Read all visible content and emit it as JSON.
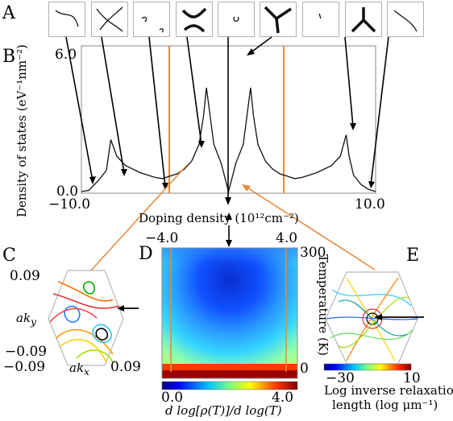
{
  "panel_labels": {
    "a": "A",
    "b": "B",
    "c": "C",
    "d": "D",
    "e": "E"
  },
  "thumbnails": [
    "fermi-contour-1",
    "fermi-contour-2",
    "fermi-contour-3",
    "fermi-contour-4",
    "fermi-contour-5",
    "fermi-contour-6",
    "fermi-contour-7",
    "fermi-contour-8",
    "fermi-contour-9"
  ],
  "panel_b": {
    "ylabel": "Density of states (eV⁻¹nm⁻²)",
    "xlabel": "Doping density (10¹²cm⁻²)",
    "y_top_tick": "6.0",
    "y_bottom_tick": "0.0",
    "x_left_tick": "−10.0",
    "x_right_tick": "10.0"
  },
  "panel_c": {
    "y_top_tick": "0.09",
    "y_bottom_tick": "−0.09",
    "x_left_tick": "−0.09",
    "x_right_tick": "0.09",
    "ylabel": "ak",
    "ylabel_sub": "y",
    "xlabel": "ak",
    "xlabel_sub": "x"
  },
  "panel_d": {
    "x_left_tick": "−4.0",
    "x_right_tick": "4.0",
    "y_top_tick": "300",
    "y_bottom_tick": "0",
    "ylabel": "Temperature (K)",
    "cbar_left": "0.0",
    "cbar_right": "4.0",
    "cbar_label": "d log[ρ(T)]/d log(T)"
  },
  "panel_e": {
    "cbar_left": "−30",
    "cbar_right": "10",
    "cbar_label_line1": "Log inverse relaxation",
    "cbar_label_line2": "length (log μm⁻¹)"
  },
  "colors": {
    "orange": "#e8893a",
    "curve": "#111111"
  },
  "chart_data": {
    "type": "line",
    "xlabel": "Doping density (10^12 cm^-2)",
    "ylabel": "Density of states (eV^-1 nm^-2)",
    "xlim": [
      -10,
      10
    ],
    "ylim": [
      0,
      6
    ],
    "x": [
      -10,
      -9.5,
      -8.8,
      -8.3,
      -8.0,
      -7.6,
      -7.0,
      -6.0,
      -5.0,
      -4.5,
      -4.0,
      -3.5,
      -3.0,
      -2.5,
      -2.0,
      -1.7,
      -1.5,
      -1.0,
      -0.5,
      0.0,
      0.5,
      1.0,
      1.5,
      1.7,
      2.0,
      2.5,
      3.0,
      3.5,
      4.0,
      4.5,
      5.0,
      6.0,
      7.0,
      7.6,
      8.0,
      8.2,
      8.5,
      9.0,
      9.5,
      10.0
    ],
    "series": [
      {
        "values": [
          0.0,
          0.05,
          0.5,
          0.9,
          2.2,
          1.5,
          1.1,
          0.8,
          0.6,
          0.55,
          0.65,
          0.75,
          0.95,
          1.3,
          2.0,
          3.2,
          4.4,
          2.0,
          1.2,
          0.0,
          1.2,
          2.0,
          4.4,
          3.2,
          2.0,
          1.3,
          0.95,
          0.75,
          0.65,
          0.55,
          0.6,
          0.8,
          1.1,
          1.5,
          2.4,
          1.5,
          0.7,
          0.3,
          0.1,
          0.0
        ]
      }
    ]
  }
}
